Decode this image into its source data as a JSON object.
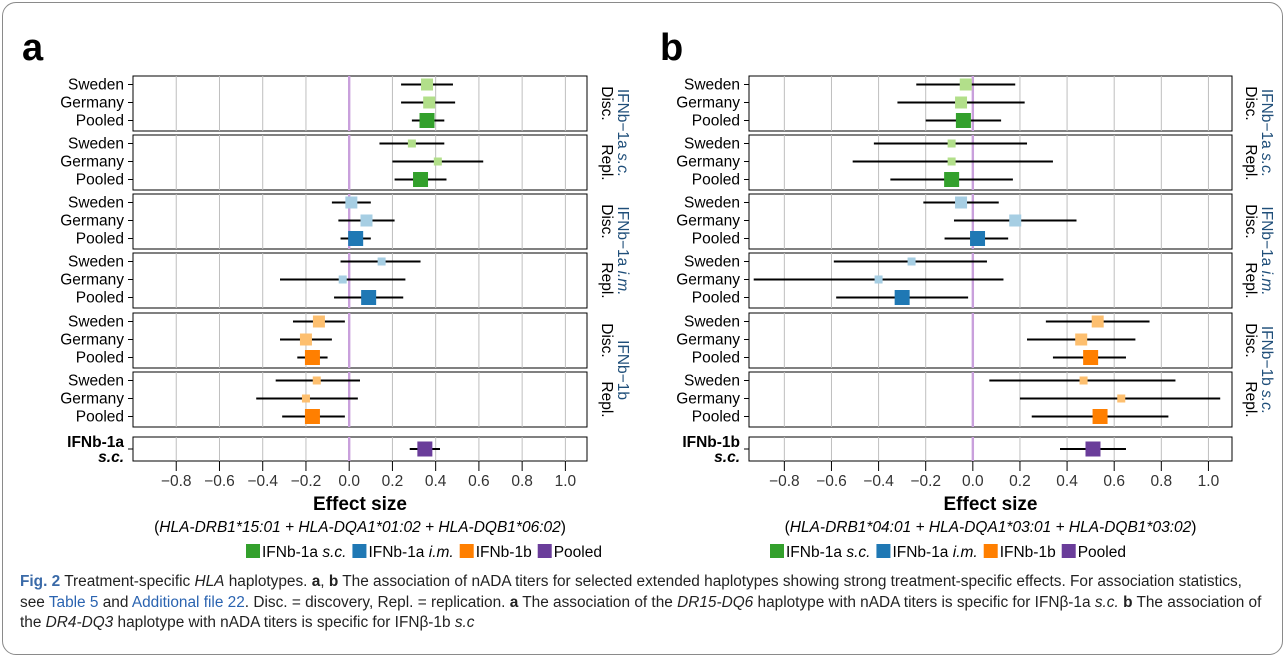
{
  "colors": {
    "ifnb1a_sc_dark": "#33a02c",
    "ifnb1a_sc_light": "#b2df8a",
    "ifnb1a_im_dark": "#1f78b4",
    "ifnb1a_im_light": "#a6cee3",
    "ifnb1b_dark": "#ff7f00",
    "ifnb1b_light": "#fdbf6f",
    "pooled": "#6a3d9a",
    "zero_line": "#c9a0dc",
    "strip_text": "#1f4e79",
    "grid": "#bebebe"
  },
  "chart_data": [
    {
      "type": "forest",
      "panel_label": "a",
      "xlabel": "Effect size",
      "xlabel_sub_italic": "HLA-DRB1*15:01 + HLA-DQA1*01:02 + HLA-DQB1*06:02",
      "xlim": [
        -1.0,
        1.1
      ],
      "xticks": [
        "−0.8",
        "−0.6",
        "−0.4",
        "−0.2",
        "0.0",
        "0.2",
        "0.4",
        "0.6",
        "0.8",
        "1.0"
      ],
      "xtick_values": [
        -0.8,
        -0.6,
        -0.4,
        -0.2,
        0.0,
        0.2,
        0.4,
        0.6,
        0.8,
        1.0
      ],
      "reference_line": 0,
      "rows": [
        "Sweden",
        "Germany",
        "Pooled"
      ],
      "facets": [
        {
          "treatment": "ifnb1a_sc",
          "stage": "Disc.",
          "estimates": [
            0.36,
            0.37,
            0.36
          ],
          "lower": [
            0.24,
            0.24,
            0.29
          ],
          "upper": [
            0.48,
            0.49,
            0.44
          ]
        },
        {
          "treatment": "ifnb1a_sc",
          "stage": "Repl.",
          "estimates": [
            0.29,
            0.41,
            0.33
          ],
          "lower": [
            0.14,
            0.2,
            0.21
          ],
          "upper": [
            0.44,
            0.62,
            0.45
          ]
        },
        {
          "treatment": "ifnb1a_im",
          "stage": "Disc.",
          "estimates": [
            0.01,
            0.08,
            0.03
          ],
          "lower": [
            -0.08,
            -0.05,
            -0.04
          ],
          "upper": [
            0.1,
            0.21,
            0.1
          ]
        },
        {
          "treatment": "ifnb1a_im",
          "stage": "Repl.",
          "estimates": [
            0.15,
            -0.03,
            0.09
          ],
          "lower": [
            -0.04,
            -0.32,
            -0.07
          ],
          "upper": [
            0.33,
            0.26,
            0.25
          ]
        },
        {
          "treatment": "ifnb1b",
          "stage": "Disc.",
          "estimates": [
            -0.14,
            -0.2,
            -0.17
          ],
          "lower": [
            -0.26,
            -0.32,
            -0.24
          ],
          "upper": [
            -0.02,
            -0.08,
            -0.1
          ]
        },
        {
          "treatment": "ifnb1b",
          "stage": "Repl.",
          "estimates": [
            -0.15,
            -0.2,
            -0.17
          ],
          "lower": [
            -0.34,
            -0.43,
            -0.31
          ],
          "upper": [
            0.05,
            0.04,
            -0.02
          ]
        }
      ],
      "strips": [
        {
          "main": "IFNb−1a ",
          "italic": "s.c.",
          "sub": [
            "Disc.",
            "Repl."
          ]
        },
        {
          "main": "IFNb−1a ",
          "italic": "i.m.",
          "sub": [
            "Disc.",
            "Repl."
          ]
        },
        {
          "main": "IFNb−1b",
          "italic": "",
          "sub": [
            "Disc.",
            "Repl."
          ]
        }
      ],
      "pooled": {
        "label_line1": "IFNb-1a",
        "label_line2": "s.c.",
        "estimate": 0.35,
        "lower": 0.28,
        "upper": 0.42
      }
    },
    {
      "type": "forest",
      "panel_label": "b",
      "xlabel": "Effect size",
      "xlabel_sub_italic": "HLA-DRB1*04:01 + HLA-DQA1*03:01 + HLA-DQB1*03:02",
      "xlim": [
        -0.95,
        1.1
      ],
      "xticks": [
        "−0.8",
        "−0.6",
        "−0.4",
        "−0.2",
        "0.0",
        "0.2",
        "0.4",
        "0.6",
        "0.8",
        "1.0"
      ],
      "xtick_values": [
        -0.8,
        -0.6,
        -0.4,
        -0.2,
        0.0,
        0.2,
        0.4,
        0.6,
        0.8,
        1.0
      ],
      "reference_line": 0,
      "rows": [
        "Sweden",
        "Germany",
        "Pooled"
      ],
      "facets": [
        {
          "treatment": "ifnb1a_sc",
          "stage": "Disc.",
          "estimates": [
            -0.03,
            -0.05,
            -0.04
          ],
          "lower": [
            -0.24,
            -0.32,
            -0.2
          ],
          "upper": [
            0.18,
            0.22,
            0.12
          ]
        },
        {
          "treatment": "ifnb1a_sc",
          "stage": "Repl.",
          "estimates": [
            -0.09,
            -0.09,
            -0.09
          ],
          "lower": [
            -0.42,
            -0.51,
            -0.35
          ],
          "upper": [
            0.23,
            0.34,
            0.17
          ]
        },
        {
          "treatment": "ifnb1a_im",
          "stage": "Disc.",
          "estimates": [
            -0.05,
            0.18,
            0.02
          ],
          "lower": [
            -0.21,
            -0.08,
            -0.12
          ],
          "upper": [
            0.11,
            0.44,
            0.15
          ]
        },
        {
          "treatment": "ifnb1a_im",
          "stage": "Repl.",
          "estimates": [
            -0.26,
            -0.4,
            -0.3
          ],
          "lower": [
            -0.59,
            -0.93,
            -0.58
          ],
          "upper": [
            0.06,
            0.13,
            -0.02
          ]
        },
        {
          "treatment": "ifnb1b",
          "stage": "Disc.",
          "estimates": [
            0.53,
            0.46,
            0.5
          ],
          "lower": [
            0.31,
            0.23,
            0.34
          ],
          "upper": [
            0.75,
            0.69,
            0.65
          ]
        },
        {
          "treatment": "ifnb1b",
          "stage": "Repl.",
          "estimates": [
            0.47,
            0.63,
            0.54
          ],
          "lower": [
            0.07,
            0.2,
            0.25
          ],
          "upper": [
            0.86,
            1.05,
            0.83
          ]
        }
      ],
      "strips": [
        {
          "main": "IFNb−1a ",
          "italic": "s.c.",
          "sub": [
            "Disc.",
            "Repl."
          ]
        },
        {
          "main": "IFNb−1a ",
          "italic": "i.m.",
          "sub": [
            "Disc.",
            "Repl."
          ]
        },
        {
          "main": "IFNb−1b ",
          "italic": "s.c.",
          "sub": [
            "Disc.",
            "Repl."
          ]
        }
      ],
      "pooled": {
        "label_line1": "IFNb-1b",
        "label_line2": "s.c.",
        "estimate": 0.51,
        "lower": 0.37,
        "upper": 0.65
      }
    }
  ],
  "legend": [
    {
      "text": "IFNb-1a ",
      "italic": "s.c.",
      "color_key": "ifnb1a_sc_dark"
    },
    {
      "text": "IFNb-1a ",
      "italic": "i.m.",
      "color_key": "ifnb1a_im_dark"
    },
    {
      "text": "IFNb-1b",
      "italic": "",
      "color_key": "ifnb1b_dark"
    },
    {
      "text": "Pooled",
      "italic": "",
      "color_key": "pooled"
    }
  ],
  "caption": {
    "fig_label": "Fig. 2",
    "title_a": " Treatment-specific ",
    "title_hla": "HLA",
    "title_b": " haplotypes. ",
    "ref_a": "a",
    "comma": ", ",
    "ref_b": "b",
    "text1": " The association of nADA titers for selected extended haplotypes showing strong treatment-specific effects. For association statistics, see ",
    "table_link": "Table 5",
    "text2": " and ",
    "file_link": "Additional file 22",
    "text3": ". Disc. = discovery, Repl. = replication. ",
    "a_label": "a",
    "a_text1": " The association of the ",
    "a_hap": "DR15-DQ6",
    "a_text2": " haplotype with nADA titers is specific for IFNβ-1a ",
    "a_route": "s.c.",
    "b_label": "b",
    "b_text1": " The association of the ",
    "b_hap": "DR4-DQ3",
    "b_text2": " haplotype with nADA titers is specific for IFNβ-1b ",
    "b_route": "s.c"
  }
}
